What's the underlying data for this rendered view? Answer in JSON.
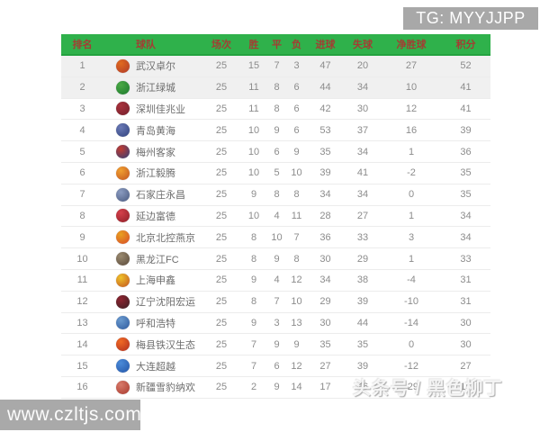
{
  "banner": {
    "text": "TG: MYYJJPP"
  },
  "watermarks": {
    "bottom_left": "www.czltjs.com",
    "bottom_right": "头条号 / 黑色柳丁"
  },
  "colors": {
    "header_bg": "#2fb14b",
    "header_text": "#a33d33",
    "highlight_row_bg": "#f0f0f0",
    "banner_bg": "#a8a8a8"
  },
  "table": {
    "headers": [
      "排名",
      "球队",
      "场次",
      "胜",
      "平",
      "负",
      "进球",
      "失球",
      "净胜球",
      "积分"
    ],
    "rows": [
      {
        "rank": "1",
        "team": "武汉卓尔",
        "played": "25",
        "win": "15",
        "draw": "7",
        "loss": "3",
        "gf": "47",
        "ga": "20",
        "gd": "27",
        "pts": "52",
        "highlight": true,
        "logo_colors": [
          "#e06a1f",
          "#b03a28"
        ]
      },
      {
        "rank": "2",
        "team": "浙江绿城",
        "played": "25",
        "win": "11",
        "draw": "8",
        "loss": "6",
        "gf": "44",
        "ga": "34",
        "gd": "10",
        "pts": "41",
        "highlight": true,
        "logo_colors": [
          "#4aa845",
          "#1d7a2e"
        ]
      },
      {
        "rank": "3",
        "team": "深圳佳兆业",
        "played": "25",
        "win": "11",
        "draw": "8",
        "loss": "6",
        "gf": "42",
        "ga": "30",
        "gd": "12",
        "pts": "41",
        "highlight": false,
        "logo_colors": [
          "#a8323c",
          "#731f2b"
        ]
      },
      {
        "rank": "4",
        "team": "青岛黄海",
        "played": "25",
        "win": "10",
        "draw": "9",
        "loss": "6",
        "gf": "53",
        "ga": "37",
        "gd": "16",
        "pts": "39",
        "highlight": false,
        "logo_colors": [
          "#6a79b5",
          "#31437e"
        ]
      },
      {
        "rank": "5",
        "team": "梅州客家",
        "played": "25",
        "win": "10",
        "draw": "6",
        "loss": "9",
        "gf": "35",
        "ga": "34",
        "gd": "1",
        "pts": "36",
        "highlight": false,
        "logo_colors": [
          "#c23b30",
          "#2e3f7a"
        ]
      },
      {
        "rank": "6",
        "team": "浙江毅腾",
        "played": "25",
        "win": "10",
        "draw": "5",
        "loss": "10",
        "gf": "39",
        "ga": "41",
        "gd": "-2",
        "pts": "35",
        "highlight": false,
        "logo_colors": [
          "#f0a030",
          "#c2521f"
        ]
      },
      {
        "rank": "7",
        "team": "石家庄永昌",
        "played": "25",
        "win": "9",
        "draw": "8",
        "loss": "8",
        "gf": "34",
        "ga": "34",
        "gd": "0",
        "pts": "35",
        "highlight": false,
        "logo_colors": [
          "#8a9bc0",
          "#4a5a80"
        ]
      },
      {
        "rank": "8",
        "team": "延边富德",
        "played": "25",
        "win": "10",
        "draw": "4",
        "loss": "11",
        "gf": "28",
        "ga": "27",
        "gd": "1",
        "pts": "34",
        "highlight": false,
        "logo_colors": [
          "#d4404a",
          "#8e1f28"
        ]
      },
      {
        "rank": "9",
        "team": "北京北控燕京",
        "played": "25",
        "win": "8",
        "draw": "10",
        "loss": "7",
        "gf": "36",
        "ga": "33",
        "gd": "3",
        "pts": "34",
        "highlight": false,
        "logo_colors": [
          "#e8a020",
          "#d84a28"
        ]
      },
      {
        "rank": "10",
        "team": "黑龙江FC",
        "played": "25",
        "win": "8",
        "draw": "9",
        "loss": "8",
        "gf": "30",
        "ga": "29",
        "gd": "1",
        "pts": "33",
        "highlight": false,
        "logo_colors": [
          "#9a8a70",
          "#5a4a3a"
        ]
      },
      {
        "rank": "11",
        "team": "上海申鑫",
        "played": "25",
        "win": "9",
        "draw": "4",
        "loss": "12",
        "gf": "34",
        "ga": "38",
        "gd": "-4",
        "pts": "31",
        "highlight": false,
        "logo_colors": [
          "#eec22a",
          "#c2521f"
        ]
      },
      {
        "rank": "12",
        "team": "辽宁沈阳宏运",
        "played": "25",
        "win": "8",
        "draw": "7",
        "loss": "10",
        "gf": "29",
        "ga": "39",
        "gd": "-10",
        "pts": "31",
        "highlight": false,
        "logo_colors": [
          "#8e2430",
          "#3a2024"
        ]
      },
      {
        "rank": "13",
        "team": "呼和浩特",
        "played": "25",
        "win": "9",
        "draw": "3",
        "loss": "13",
        "gf": "30",
        "ga": "44",
        "gd": "-14",
        "pts": "30",
        "highlight": false,
        "logo_colors": [
          "#6a9ace",
          "#2e5a9e"
        ]
      },
      {
        "rank": "14",
        "team": "梅县铁汉生态",
        "played": "25",
        "win": "7",
        "draw": "9",
        "loss": "9",
        "gf": "35",
        "ga": "35",
        "gd": "0",
        "pts": "30",
        "highlight": false,
        "logo_colors": [
          "#f06a24",
          "#b02e1f"
        ]
      },
      {
        "rank": "15",
        "team": "大连超越",
        "played": "25",
        "win": "7",
        "draw": "6",
        "loss": "12",
        "gf": "27",
        "ga": "39",
        "gd": "-12",
        "pts": "27",
        "highlight": false,
        "logo_colors": [
          "#4a8ad8",
          "#2456a8"
        ]
      },
      {
        "rank": "16",
        "team": "新疆雪豹纳欢",
        "played": "25",
        "win": "2",
        "draw": "9",
        "loss": "14",
        "gf": "17",
        "ga": "46",
        "gd": "-29",
        "pts": "15",
        "highlight": false,
        "logo_colors": [
          "#d87a6a",
          "#a8392e"
        ]
      }
    ]
  }
}
